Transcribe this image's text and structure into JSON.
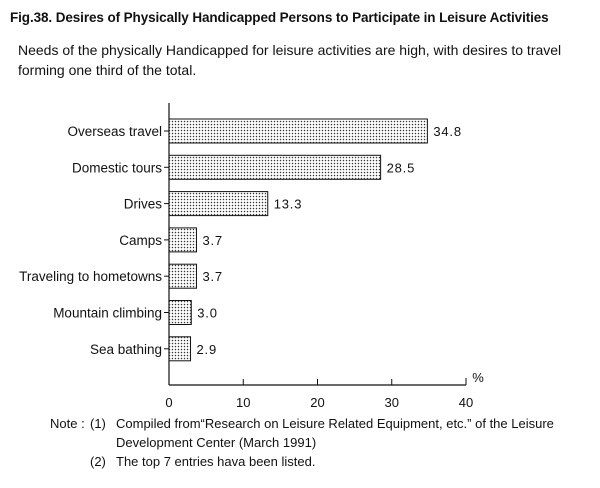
{
  "title": "Fig.38. Desires of Physically Handicapped Persons to Participate in Leisure Activities",
  "subtitle": "Needs of the physically Handicapped for leisure activities are high, with desires to travel forming one third of the total.",
  "chart_data": {
    "type": "bar",
    "orientation": "horizontal",
    "categories": [
      "Overseas travel",
      "Domestic tours",
      "Drives",
      "Camps",
      "Traveling to hometowns",
      "Mountain climbing",
      "Sea bathing"
    ],
    "values": [
      34.8,
      28.5,
      13.3,
      3.7,
      3.7,
      3.0,
      2.9
    ],
    "value_labels": [
      "34.8",
      "28.5",
      "13.3",
      "3.7",
      "3.7",
      "3.0",
      "2.9"
    ],
    "xlim": [
      0,
      40
    ],
    "xticks": [
      "0",
      "10",
      "20",
      "30",
      "40"
    ],
    "unit": "%",
    "bar_fill": "dotted",
    "grid": false
  },
  "notes": {
    "lead": "Note :",
    "items": [
      {
        "num": "(1)",
        "text": "Compiled from“Research on Leisure Related Equipment, etc.” of the Leisure Development Center (March 1991)"
      },
      {
        "num": "(2)",
        "text": "The top 7 entries hava been listed."
      }
    ]
  }
}
